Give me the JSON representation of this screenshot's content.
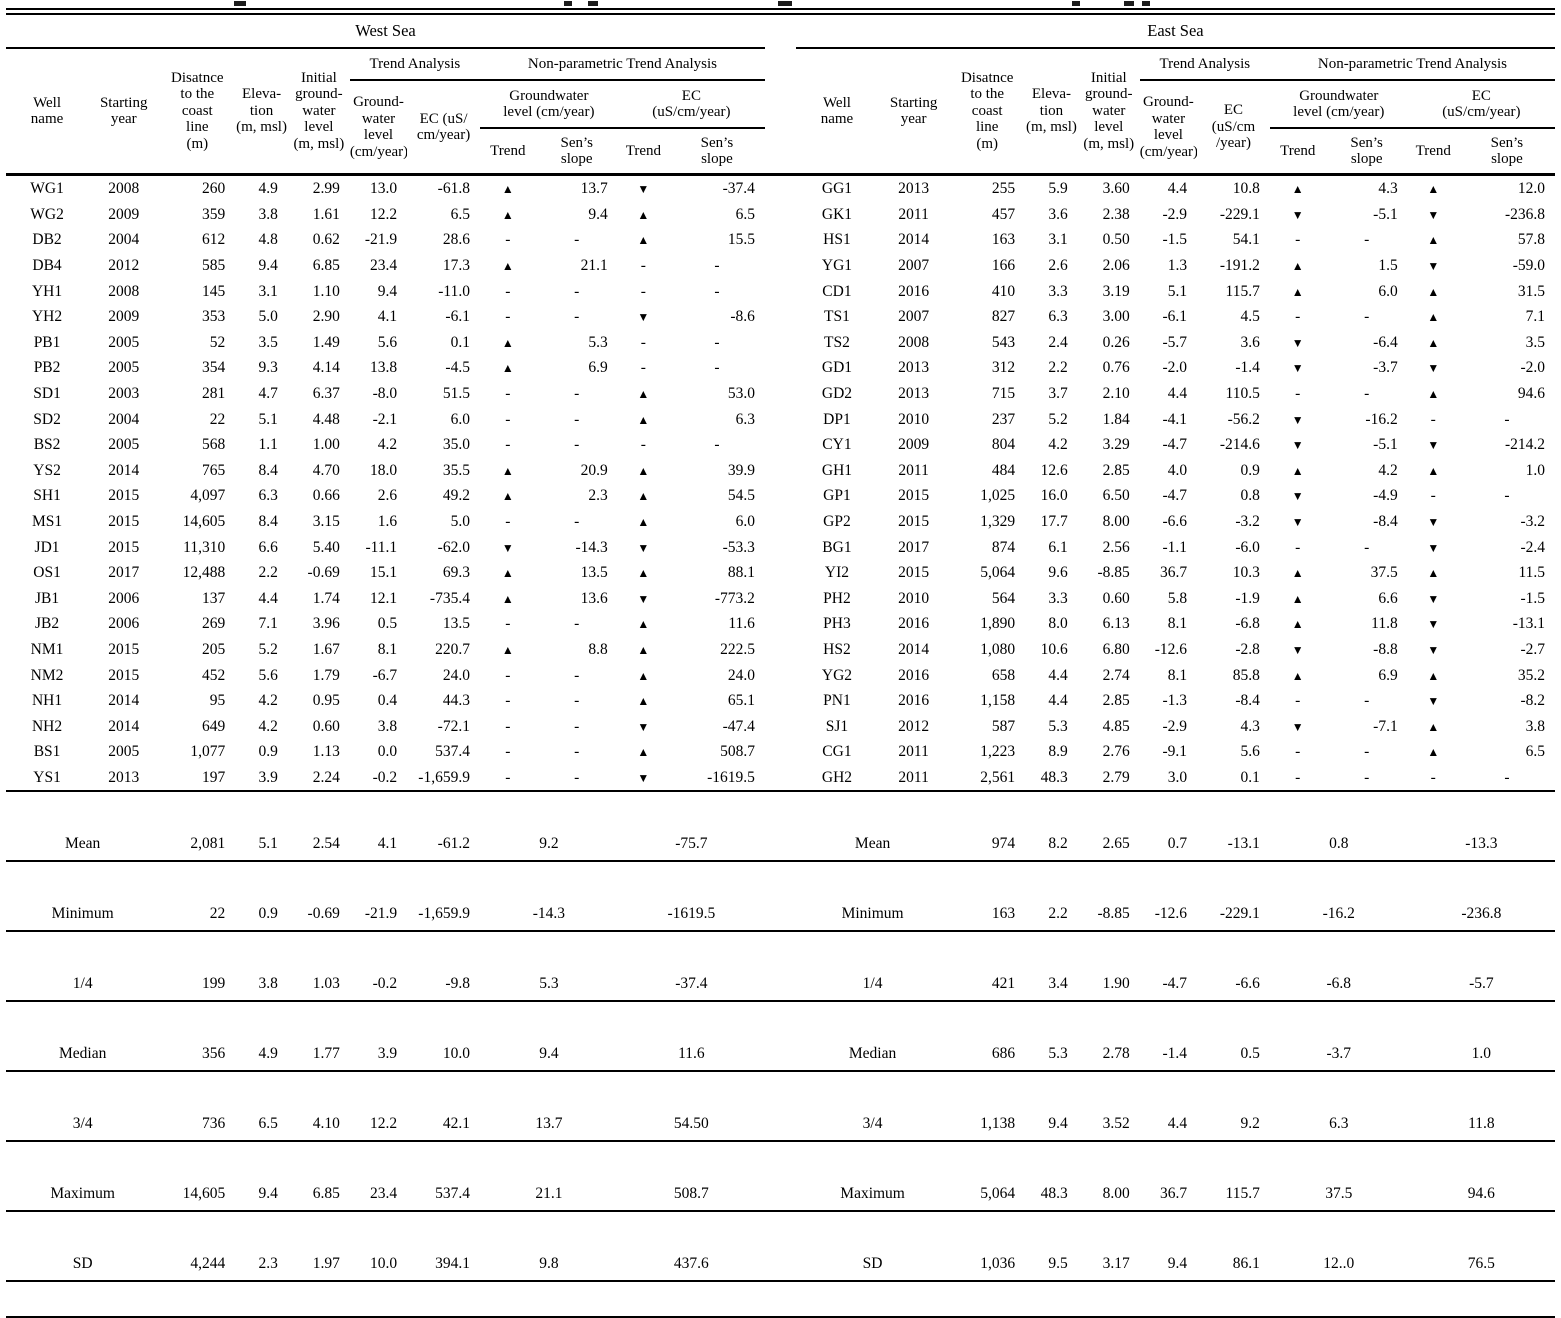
{
  "west": {
    "title": "West Sea",
    "col": {
      "well": "Well\nname",
      "year": "Starting\nyear",
      "distance": "Disatnce\nto the\ncoast\nline\n(m)",
      "elevation": "Eleva-\ntion\n(m, msl)",
      "initial": "Initial\nground-\nwater\nlevel\n(m, msl)",
      "trend_analysis": "Trend Analysis",
      "gw": "Ground-\nwater level\n(cm/year)",
      "ec": "EC (uS/\ncm/year)",
      "nonparametric": "Non-parametric Trend Analysis",
      "np_gw": "Groundwater\nlevel (cm/year)",
      "np_ec": "EC\n(uS/cm/year)",
      "trend": "Trend",
      "sen": "Sen’s\nslope"
    },
    "rows": [
      [
        "WG1",
        "2008",
        "260",
        "4.9",
        "2.99",
        "13.0",
        "-61.8",
        "▲",
        "13.7",
        "▼",
        "-37.4"
      ],
      [
        "WG2",
        "2009",
        "359",
        "3.8",
        "1.61",
        "12.2",
        "6.5",
        "▲",
        "9.4",
        "▲",
        "6.5"
      ],
      [
        "DB2",
        "2004",
        "612",
        "4.8",
        "0.62",
        "-21.9",
        "28.6",
        "-",
        "-",
        "▲",
        "15.5"
      ],
      [
        "DB4",
        "2012",
        "585",
        "9.4",
        "6.85",
        "23.4",
        "17.3",
        "▲",
        "21.1",
        "-",
        "-"
      ],
      [
        "YH1",
        "2008",
        "145",
        "3.1",
        "1.10",
        "9.4",
        "-11.0",
        "-",
        "-",
        "-",
        "-"
      ],
      [
        "YH2",
        "2009",
        "353",
        "5.0",
        "2.90",
        "4.1",
        "-6.1",
        "-",
        "-",
        "▼",
        "-8.6"
      ],
      [
        "PB1",
        "2005",
        "52",
        "3.5",
        "1.49",
        "5.6",
        "0.1",
        "▲",
        "5.3",
        "-",
        "-"
      ],
      [
        "PB2",
        "2005",
        "354",
        "9.3",
        "4.14",
        "13.8",
        "-4.5",
        "▲",
        "6.9",
        "-",
        "-"
      ],
      [
        "SD1",
        "2003",
        "281",
        "4.7",
        "6.37",
        "-8.0",
        "51.5",
        "-",
        "-",
        "▲",
        "53.0"
      ],
      [
        "SD2",
        "2004",
        "22",
        "5.1",
        "4.48",
        "-2.1",
        "6.0",
        "-",
        "-",
        "▲",
        "6.3"
      ],
      [
        "BS2",
        "2005",
        "568",
        "1.1",
        "1.00",
        "4.2",
        "35.0",
        "-",
        "-",
        "-",
        "-"
      ],
      [
        "YS2",
        "2014",
        "765",
        "8.4",
        "4.70",
        "18.0",
        "35.5",
        "▲",
        "20.9",
        "▲",
        "39.9"
      ],
      [
        "SH1",
        "2015",
        "4,097",
        "6.3",
        "0.66",
        "2.6",
        "49.2",
        "▲",
        "2.3",
        "▲",
        "54.5"
      ],
      [
        "MS1",
        "2015",
        "14,605",
        "8.4",
        "3.15",
        "1.6",
        "5.0",
        "-",
        "-",
        "▲",
        "6.0"
      ],
      [
        "JD1",
        "2015",
        "11,310",
        "6.6",
        "5.40",
        "-11.1",
        "-62.0",
        "▼",
        "-14.3",
        "▼",
        "-53.3"
      ],
      [
        "OS1",
        "2017",
        "12,488",
        "2.2",
        "-0.69",
        "15.1",
        "69.3",
        "▲",
        "13.5",
        "▲",
        "88.1"
      ],
      [
        "JB1",
        "2006",
        "137",
        "4.4",
        "1.74",
        "12.1",
        "-735.4",
        "▲",
        "13.6",
        "▼",
        "-773.2"
      ],
      [
        "JB2",
        "2006",
        "269",
        "7.1",
        "3.96",
        "0.5",
        "13.5",
        "-",
        "-",
        "▲",
        "11.6"
      ],
      [
        "NM1",
        "2015",
        "205",
        "5.2",
        "1.67",
        "8.1",
        "220.7",
        "▲",
        "8.8",
        "▲",
        "222.5"
      ],
      [
        "NM2",
        "2015",
        "452",
        "5.6",
        "1.79",
        "-6.7",
        "24.0",
        "-",
        "-",
        "▲",
        "24.0"
      ],
      [
        "NH1",
        "2014",
        "95",
        "4.2",
        "0.95",
        "0.4",
        "44.3",
        "-",
        "-",
        "▲",
        "65.1"
      ],
      [
        "NH2",
        "2014",
        "649",
        "4.2",
        "0.60",
        "3.8",
        "-72.1",
        "-",
        "-",
        "▼",
        "-47.4"
      ],
      [
        "BS1",
        "2005",
        "1,077",
        "0.9",
        "1.13",
        "0.0",
        "537.4",
        "-",
        "-",
        "▲",
        "508.7"
      ],
      [
        "YS1",
        "2013",
        "197",
        "3.9",
        "2.24",
        "-0.2",
        "-1,659.9",
        "-",
        "-",
        "▼",
        "-1619.5"
      ]
    ],
    "summary": [
      [
        "Mean",
        "2,081",
        "5.1",
        "2.54",
        "4.1",
        "-61.2",
        "9.2",
        "-75.7"
      ],
      [
        "Minimum",
        "22",
        "0.9",
        "-0.69",
        "-21.9",
        "-1,659.9",
        "-14.3",
        "-1619.5"
      ],
      [
        "1/4",
        "199",
        "3.8",
        "1.03",
        "-0.2",
        "-9.8",
        "5.3",
        "-37.4"
      ],
      [
        "Median",
        "356",
        "4.9",
        "1.77",
        "3.9",
        "10.0",
        "9.4",
        "11.6"
      ],
      [
        "3/4",
        "736",
        "6.5",
        "4.10",
        "12.2",
        "42.1",
        "13.7",
        "54.50"
      ],
      [
        "Maximum",
        "14,605",
        "9.4",
        "6.85",
        "23.4",
        "537.4",
        "21.1",
        "508.7"
      ],
      [
        "SD",
        "4,244",
        "2.3",
        "1.97",
        "10.0",
        "394.1",
        "9.8",
        "437.6"
      ]
    ]
  },
  "east": {
    "title": "East Sea",
    "col": {
      "well": "Well\nname",
      "year": "Starting\nyear",
      "distance": "Disatnce\nto the\ncoast\nline\n(m)",
      "elevation": "Eleva-\ntion\n(m, msl)",
      "initial": "Initial\nground-\nwater level\n(m, msl)",
      "trend_analysis": "Trend Analysis",
      "gw": "Ground-\nwater\nlevel\n(cm/year)",
      "ec": "EC\n(uS/cm\n/year)",
      "nonparametric": "Non-parametric Trend Analysis",
      "np_gw": "Groundwater\nlevel (cm/year)",
      "np_ec": "EC\n(uS/cm/year)",
      "trend": "Trend",
      "sen": "Sen’s\nslope"
    },
    "rows": [
      [
        "GG1",
        "2013",
        "255",
        "5.9",
        "3.60",
        "4.4",
        "10.8",
        "▲",
        "4.3",
        "▲",
        "12.0"
      ],
      [
        "GK1",
        "2011",
        "457",
        "3.6",
        "2.38",
        "-2.9",
        "-229.1",
        "▼",
        "-5.1",
        "▼",
        "-236.8"
      ],
      [
        "HS1",
        "2014",
        "163",
        "3.1",
        "0.50",
        "-1.5",
        "54.1",
        "-",
        "-",
        "▲",
        "57.8"
      ],
      [
        "YG1",
        "2007",
        "166",
        "2.6",
        "2.06",
        "1.3",
        "-191.2",
        "▲",
        "1.5",
        "▼",
        "-59.0"
      ],
      [
        "CD1",
        "2016",
        "410",
        "3.3",
        "3.19",
        "5.1",
        "115.7",
        "▲",
        "6.0",
        "▲",
        "31.5"
      ],
      [
        "TS1",
        "2007",
        "827",
        "6.3",
        "3.00",
        "-6.1",
        "4.5",
        "-",
        "-",
        "▲",
        "7.1"
      ],
      [
        "TS2",
        "2008",
        "543",
        "2.4",
        "0.26",
        "-5.7",
        "3.6",
        "▼",
        "-6.4",
        "▲",
        "3.5"
      ],
      [
        "GD1",
        "2013",
        "312",
        "2.2",
        "0.76",
        "-2.0",
        "-1.4",
        "▼",
        "-3.7",
        "▼",
        "-2.0"
      ],
      [
        "GD2",
        "2013",
        "715",
        "3.7",
        "2.10",
        "4.4",
        "110.5",
        "-",
        "-",
        "▲",
        "94.6"
      ],
      [
        "DP1",
        "2010",
        "237",
        "5.2",
        "1.84",
        "-4.1",
        "-56.2",
        "▼",
        "-16.2",
        "-",
        "-"
      ],
      [
        "CY1",
        "2009",
        "804",
        "4.2",
        "3.29",
        "-4.7",
        "-214.6",
        "▼",
        "-5.1",
        "▼",
        "-214.2"
      ],
      [
        "GH1",
        "2011",
        "484",
        "12.6",
        "2.85",
        "4.0",
        "0.9",
        "▲",
        "4.2",
        "▲",
        "1.0"
      ],
      [
        "GP1",
        "2015",
        "1,025",
        "16.0",
        "6.50",
        "-4.7",
        "0.8",
        "▼",
        "-4.9",
        "-",
        "-"
      ],
      [
        "GP2",
        "2015",
        "1,329",
        "17.7",
        "8.00",
        "-6.6",
        "-3.2",
        "▼",
        "-8.4",
        "▼",
        "-3.2"
      ],
      [
        "BG1",
        "2017",
        "874",
        "6.1",
        "2.56",
        "-1.1",
        "-6.0",
        "-",
        "-",
        "▼",
        "-2.4"
      ],
      [
        "YI2",
        "2015",
        "5,064",
        "9.6",
        "-8.85",
        "36.7",
        "10.3",
        "▲",
        "37.5",
        "▲",
        "11.5"
      ],
      [
        "PH2",
        "2010",
        "564",
        "3.3",
        "0.60",
        "5.8",
        "-1.9",
        "▲",
        "6.6",
        "▼",
        "-1.5"
      ],
      [
        "PH3",
        "2016",
        "1,890",
        "8.0",
        "6.13",
        "8.1",
        "-6.8",
        "▲",
        "11.8",
        "▼",
        "-13.1"
      ],
      [
        "HS2",
        "2014",
        "1,080",
        "10.6",
        "6.80",
        "-12.6",
        "-2.8",
        "▼",
        "-8.8",
        "▼",
        "-2.7"
      ],
      [
        "YG2",
        "2016",
        "658",
        "4.4",
        "2.74",
        "8.1",
        "85.8",
        "▲",
        "6.9",
        "▲",
        "35.2"
      ],
      [
        "PN1",
        "2016",
        "1,158",
        "4.4",
        "2.85",
        "-1.3",
        "-8.4",
        "-",
        "-",
        "▼",
        "-8.2"
      ],
      [
        "SJ1",
        "2012",
        "587",
        "5.3",
        "4.85",
        "-2.9",
        "4.3",
        "▼",
        "-7.1",
        "▲",
        "3.8"
      ],
      [
        "CG1",
        "2011",
        "1,223",
        "8.9",
        "2.76",
        "-9.1",
        "5.6",
        "-",
        "-",
        "▲",
        "6.5"
      ],
      [
        "GH2",
        "2011",
        "2,561",
        "48.3",
        "2.79",
        "3.0",
        "0.1",
        "-",
        "-",
        "-",
        "-"
      ]
    ],
    "summary": [
      [
        "Mean",
        "974",
        "8.2",
        "2.65",
        "0.7",
        "-13.1",
        "0.8",
        "-13.3"
      ],
      [
        "Minimum",
        "163",
        "2.2",
        "-8.85",
        "-12.6",
        "-229.1",
        "-16.2",
        "-236.8"
      ],
      [
        "1/4",
        "421",
        "3.4",
        "1.90",
        "-4.7",
        "-6.6",
        "-6.8",
        "-5.7"
      ],
      [
        "Median",
        "686",
        "5.3",
        "2.78",
        "-1.4",
        "0.5",
        "-3.7",
        "1.0"
      ],
      [
        "3/4",
        "1,138",
        "9.4",
        "3.52",
        "4.4",
        "9.2",
        "6.3",
        "11.8"
      ],
      [
        "Maximum",
        "5,064",
        "48.3",
        "8.00",
        "36.7",
        "115.7",
        "37.5",
        "94.6"
      ],
      [
        "SD",
        "1,036",
        "9.5",
        "3.17",
        "9.4",
        "86.1",
        "12..0",
        "76.5"
      ]
    ]
  }
}
